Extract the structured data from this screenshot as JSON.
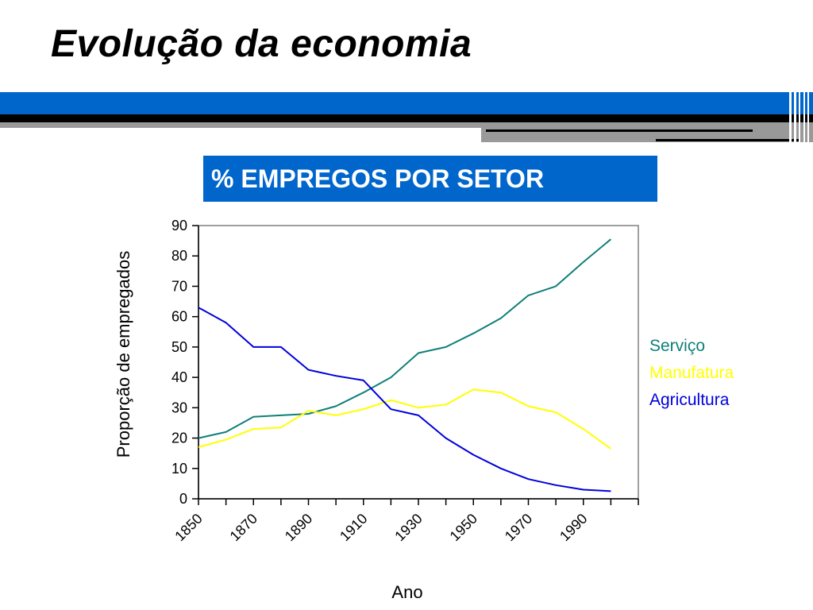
{
  "slide": {
    "title": "Evolução da economia",
    "banner": "% EMPREGOS POR SETOR"
  },
  "colors": {
    "accent_blue": "#0066cc",
    "servico": "#0f7f78",
    "manufatura": "#ffff00",
    "agricultura": "#0000dd"
  },
  "chart_data": {
    "type": "line",
    "title": "",
    "xlabel": "Ano",
    "ylabel": "Proporção de empregados",
    "ylim": [
      0,
      90
    ],
    "yticks": [
      0,
      10,
      20,
      30,
      40,
      50,
      60,
      70,
      80,
      90
    ],
    "x": [
      1850,
      1860,
      1870,
      1880,
      1890,
      1900,
      1910,
      1920,
      1930,
      1940,
      1950,
      1960,
      1970,
      1980,
      1990,
      2000,
      2010
    ],
    "xticklabels": [
      "1850",
      "1870",
      "1890",
      "1910",
      "1930",
      "1950",
      "1970",
      "1990"
    ],
    "grid": false,
    "legend_position": "right",
    "series": [
      {
        "name": "Serviço",
        "color": "#0f7f78",
        "values": [
          20,
          22,
          27,
          27.5,
          28,
          30.5,
          35,
          40,
          48,
          50,
          54.5,
          59.5,
          67,
          70,
          78,
          85.5,
          null
        ]
      },
      {
        "name": "Manufatura",
        "color": "#ffff00",
        "values": [
          17,
          19.5,
          23,
          23.5,
          29,
          27.5,
          29.5,
          32.5,
          30,
          31,
          36,
          35,
          30.5,
          28.5,
          23,
          16.5,
          null
        ]
      },
      {
        "name": "Agricultura",
        "color": "#0000dd",
        "values": [
          63,
          58,
          50,
          50,
          42.5,
          40.5,
          39,
          29.5,
          27.5,
          20,
          14.5,
          10,
          6.5,
          4.5,
          3,
          2.5,
          null
        ]
      }
    ]
  }
}
